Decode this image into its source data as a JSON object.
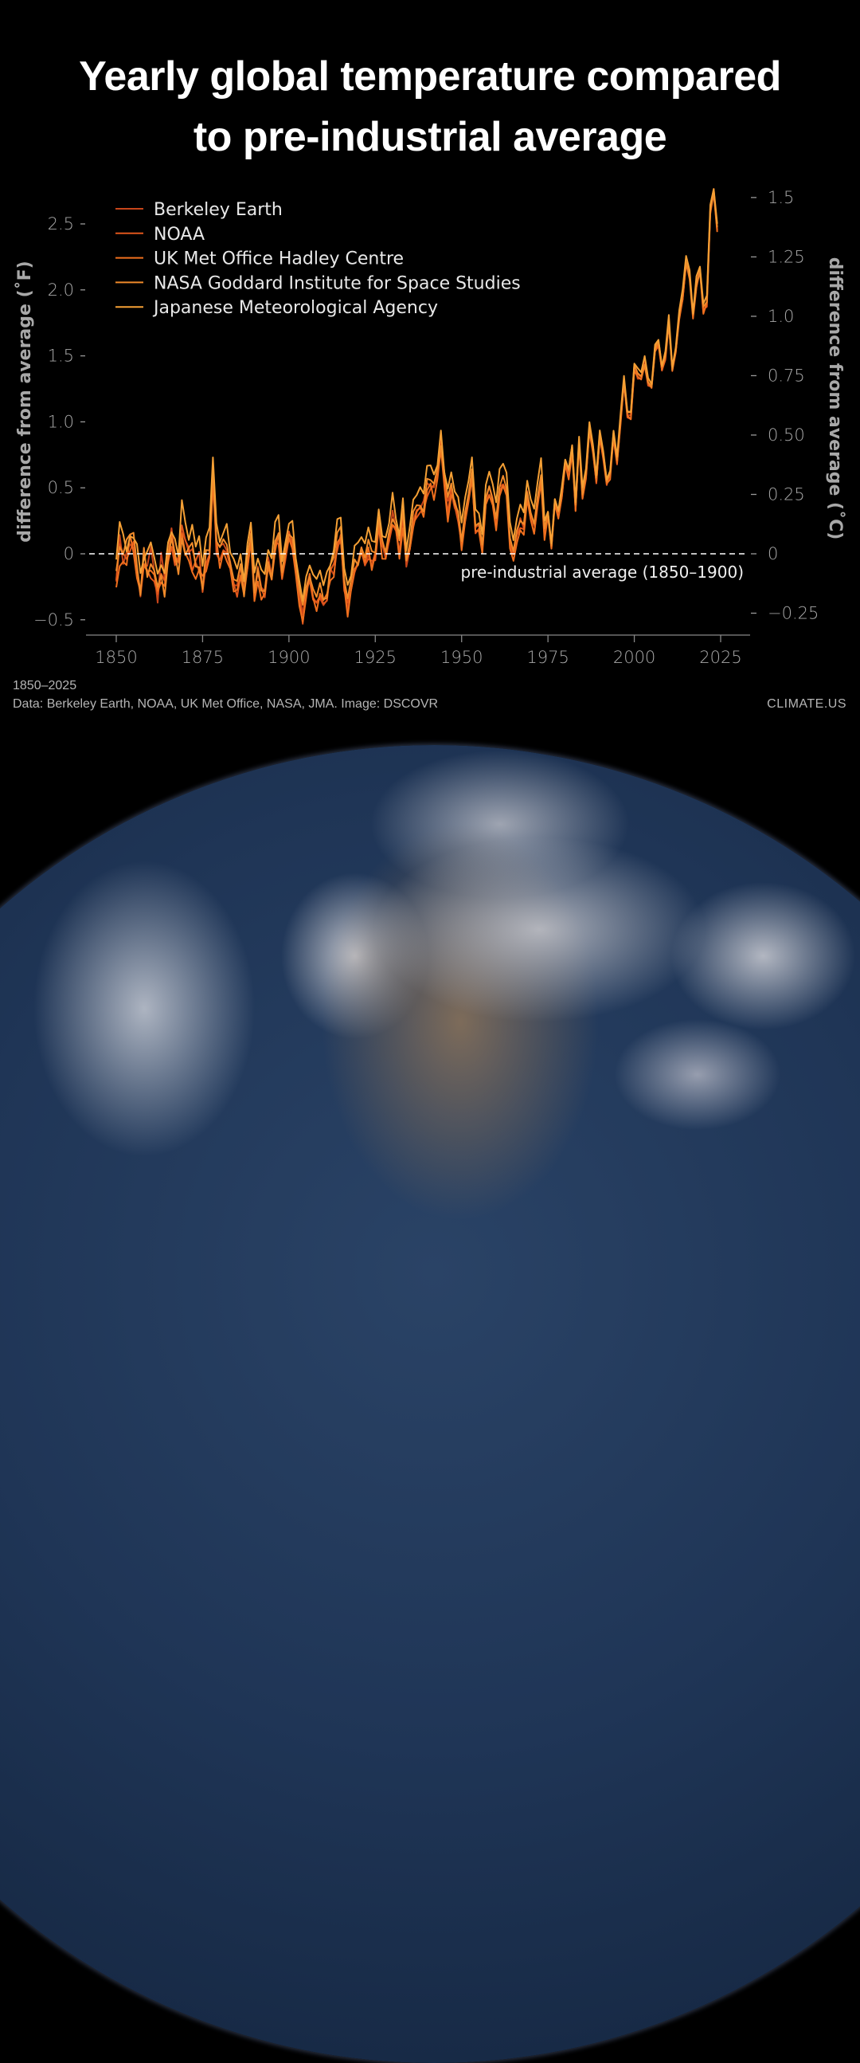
{
  "title": {
    "line1": "Yearly global temperature compared",
    "line2": "to pre-industrial average"
  },
  "footer": {
    "range": "1850–2025",
    "source": "Data: Berkeley Earth, NOAA, UK Met Office, NASA, JMA. Image: DSCOVR",
    "brand": "CLIMATE.US"
  },
  "image_caption": "DSCOVR view of Earth (North America)",
  "chart_data": {
    "type": "line",
    "title": "Yearly global temperature compared to pre-industrial average",
    "xlabel": "",
    "ylabel": "difference from average (˚F)",
    "ylabel_right": "difference from average (˚C)",
    "xlim": [
      1845,
      2033
    ],
    "ylim": [
      -0.6,
      2.85
    ],
    "x_ticks": [
      1850,
      1875,
      1900,
      1925,
      1950,
      1975,
      2000,
      2025
    ],
    "y_ticks_left": [
      {
        "value": -0.5,
        "label": "−0.5"
      },
      {
        "value": 0,
        "label": "0"
      },
      {
        "value": 0.5,
        "label": "0.5"
      },
      {
        "value": 1.0,
        "label": "1.0"
      },
      {
        "value": 1.5,
        "label": "1.5"
      },
      {
        "value": 2.0,
        "label": "2.0"
      },
      {
        "value": 2.5,
        "label": "2.5"
      }
    ],
    "y_ticks_right": [
      {
        "value": -0.25,
        "label": "−0.25"
      },
      {
        "value": 0,
        "label": "0"
      },
      {
        "value": 0.25,
        "label": "0.25"
      },
      {
        "value": 0.5,
        "label": "0.50"
      },
      {
        "value": 0.75,
        "label": "0.75"
      },
      {
        "value": 1.0,
        "label": "1.0"
      },
      {
        "value": 1.25,
        "label": "1.25"
      },
      {
        "value": 1.5,
        "label": "1.5"
      }
    ],
    "grid": false,
    "legend_position": "top-left",
    "reference_line": {
      "value": 0,
      "label": "pre-industrial average (1850–1900)",
      "style": "dashed",
      "color": "#ffffff"
    },
    "x_start": 1850,
    "base_values_F": [
      -0.1,
      0.05,
      0.02,
      0.0,
      0.1,
      0.05,
      -0.15,
      -0.25,
      -0.05,
      -0.1,
      -0.05,
      -0.2,
      -0.3,
      -0.1,
      -0.25,
      0.0,
      0.1,
      0.0,
      -0.1,
      0.2,
      0.05,
      0.0,
      0.0,
      -0.05,
      -0.05,
      -0.2,
      -0.1,
      0.1,
      0.6,
      0.1,
      0.0,
      0.05,
      0.05,
      -0.05,
      -0.2,
      -0.25,
      -0.15,
      -0.3,
      -0.05,
      0.15,
      -0.3,
      -0.15,
      -0.25,
      -0.25,
      -0.05,
      -0.2,
      0.1,
      0.15,
      -0.15,
      0.0,
      0.15,
      0.1,
      -0.1,
      -0.3,
      -0.45,
      -0.3,
      -0.15,
      -0.3,
      -0.35,
      -0.3,
      -0.35,
      -0.3,
      -0.15,
      -0.1,
      0.1,
      0.15,
      -0.2,
      -0.4,
      -0.25,
      -0.1,
      -0.05,
      0.05,
      -0.05,
      0.05,
      -0.05,
      0.0,
      0.25,
      0.05,
      0.0,
      0.15,
      0.3,
      0.2,
      0.05,
      0.3,
      -0.05,
      0.05,
      0.25,
      0.35,
      0.35,
      0.35,
      0.5,
      0.55,
      0.5,
      0.6,
      0.85,
      0.55,
      0.35,
      0.5,
      0.4,
      0.3,
      0.1,
      0.3,
      0.45,
      0.6,
      0.2,
      0.2,
      0.05,
      0.4,
      0.5,
      0.4,
      0.25,
      0.5,
      0.55,
      0.5,
      0.1,
      0.0,
      0.15,
      0.25,
      0.2,
      0.45,
      0.3,
      0.2,
      0.4,
      0.6,
      0.15,
      0.3,
      0.05,
      0.4,
      0.3,
      0.45,
      0.7,
      0.6,
      0.8,
      0.35,
      0.85,
      0.45,
      0.6,
      0.95,
      0.8,
      0.55,
      0.9,
      0.75,
      0.55,
      0.6,
      0.9,
      0.7,
      1.0,
      1.3,
      1.05,
      1.05,
      1.4,
      1.35,
      1.35,
      1.45,
      1.3,
      1.25,
      1.55,
      1.6,
      1.4,
      1.5,
      1.75,
      1.4,
      1.55,
      1.8,
      1.95,
      2.2,
      2.1,
      1.8,
      2.05,
      2.15,
      1.85,
      1.9,
      2.6,
      2.75,
      2.45
    ],
    "series": [
      {
        "name": "Berkeley Earth",
        "color": "#c8451a",
        "offset_F": 0.0
      },
      {
        "name": "NOAA",
        "color": "#e0561c",
        "offset_F": -0.03
      },
      {
        "name": "UK Met Office Hadley Centre",
        "color": "#f06f1e",
        "offset_F": -0.05
      },
      {
        "name": "NASA Goddard Institute for Space Studies",
        "color": "#f08a2a",
        "offset_F": 0.02
      },
      {
        "name": "Japanese Meteorological Agency",
        "color": "#f5a035",
        "offset_F": 0.12
      }
    ]
  }
}
